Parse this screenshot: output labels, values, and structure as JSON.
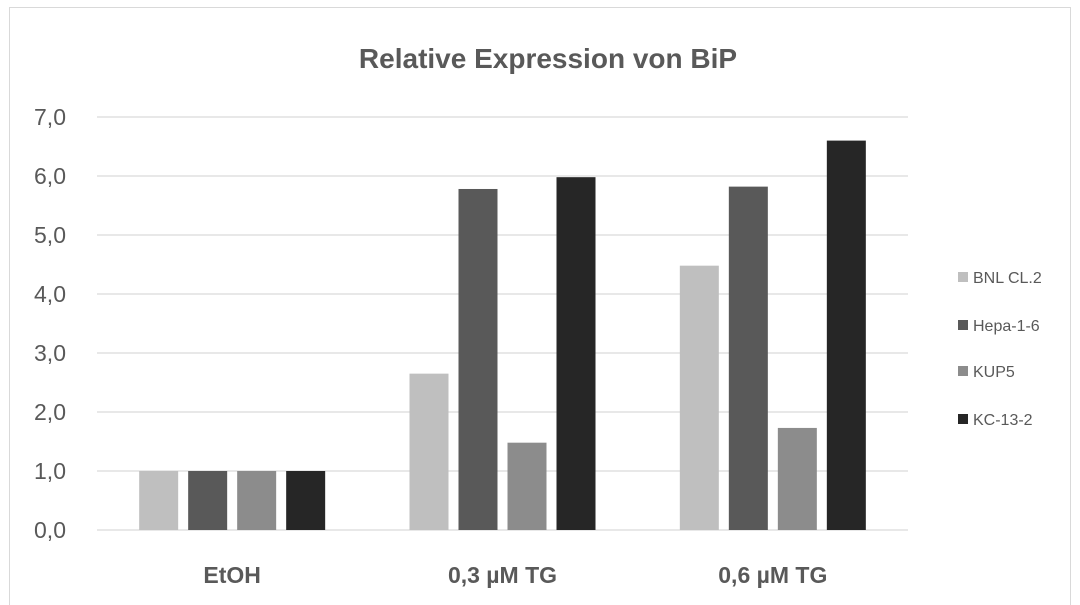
{
  "chart_data": {
    "type": "bar",
    "title": "Relative Expression von BiP",
    "xlabel": "",
    "ylabel": "",
    "categories": [
      "EtOH",
      "0,3 µM TG",
      "0,6 µM TG"
    ],
    "series": [
      {
        "name": "BNL CL.2",
        "color": "#bfbfbf",
        "values": [
          1.0,
          2.65,
          4.48
        ]
      },
      {
        "name": "Hepa-1-6",
        "color": "#595959",
        "values": [
          1.0,
          5.78,
          5.82
        ]
      },
      {
        "name": "KUP5",
        "color": "#8c8c8c",
        "values": [
          1.0,
          1.48,
          1.73
        ]
      },
      {
        "name": "KC-13-2",
        "color": "#262626",
        "values": [
          1.0,
          5.98,
          6.6
        ]
      }
    ],
    "ylim": [
      0,
      7
    ],
    "yticks": [
      "0,0",
      "1,0",
      "2,0",
      "3,0",
      "4,0",
      "5,0",
      "6,0",
      "7,0"
    ],
    "grid": true,
    "legend": "right"
  }
}
